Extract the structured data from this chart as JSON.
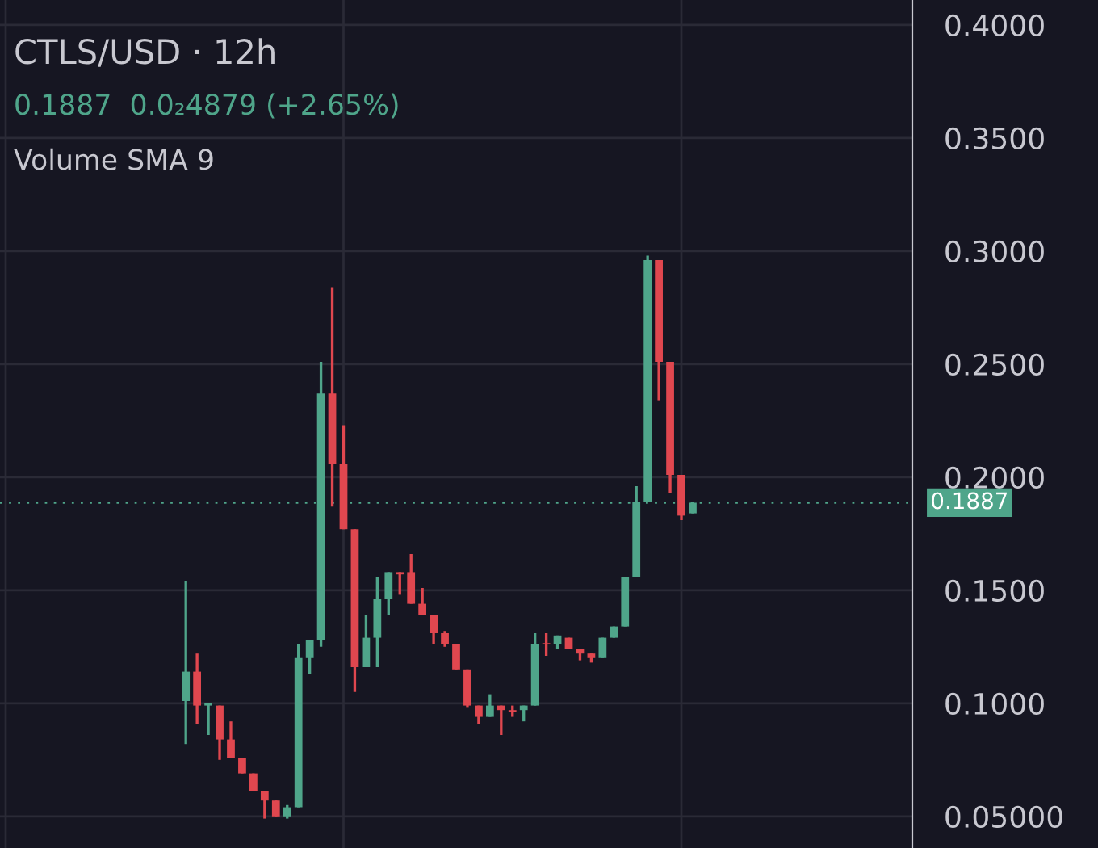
{
  "chart_data": {
    "type": "candlestick",
    "title": "CTLS/USD · 12h",
    "annotations": [
      "0.1887  0.0₂4879 (+2.65%)",
      "Volume SMA 9"
    ],
    "categories": [
      null,
      null,
      null,
      null,
      null,
      null,
      null,
      null,
      null,
      null,
      null,
      null,
      null,
      null,
      null,
      null,
      null,
      null,
      null,
      null,
      null,
      null,
      null,
      null,
      null,
      null,
      null,
      null,
      null,
      null,
      null,
      null,
      null,
      null,
      null,
      null,
      null,
      null,
      null,
      null,
      null,
      null,
      null,
      null,
      null,
      null,
      null,
      null,
      null,
      null,
      null,
      null,
      null,
      null,
      null,
      null,
      null,
      null,
      null,
      null,
      null,
      null,
      null,
      null,
      null,
      null,
      null,
      null,
      null,
      null,
      null,
      null,
      null,
      null,
      null,
      null,
      null,
      null,
      null,
      null,
      null
    ],
    "ohlc": [
      null,
      null,
      null,
      null,
      null,
      null,
      null,
      null,
      null,
      null,
      null,
      null,
      null,
      null,
      null,
      null,
      [
        0.101,
        0.154,
        0.082,
        0.114
      ],
      [
        0.114,
        0.122,
        0.091,
        0.099
      ],
      [
        0.099,
        0.1,
        0.086,
        0.1
      ],
      [
        0.099,
        0.099,
        0.075,
        0.084
      ],
      [
        0.084,
        0.092,
        0.076,
        0.076
      ],
      [
        0.076,
        0.076,
        0.069,
        0.069
      ],
      [
        0.069,
        0.069,
        0.061,
        0.061
      ],
      [
        0.061,
        0.061,
        0.049,
        0.057
      ],
      [
        0.057,
        0.057,
        0.05,
        0.05
      ],
      [
        0.05,
        0.055,
        0.049,
        0.054
      ],
      [
        0.054,
        0.126,
        0.054,
        0.12
      ],
      [
        0.12,
        0.128,
        0.113,
        0.128
      ],
      [
        0.128,
        0.251,
        0.125,
        0.237
      ],
      [
        0.237,
        0.284,
        0.187,
        0.206
      ],
      [
        0.206,
        0.223,
        0.177,
        0.177
      ],
      [
        0.177,
        0.177,
        0.105,
        0.116
      ],
      [
        0.116,
        0.139,
        0.116,
        0.129
      ],
      [
        0.129,
        0.156,
        0.116,
        0.146
      ],
      [
        0.146,
        0.158,
        0.139,
        0.158
      ],
      [
        0.158,
        0.158,
        0.148,
        0.157
      ],
      [
        0.158,
        0.166,
        0.144,
        0.144
      ],
      [
        0.144,
        0.151,
        0.139,
        0.139
      ],
      [
        0.139,
        0.139,
        0.126,
        0.131
      ],
      [
        0.131,
        0.132,
        0.125,
        0.126
      ],
      [
        0.126,
        0.126,
        0.115,
        0.115
      ],
      [
        0.115,
        0.115,
        0.098,
        0.099
      ],
      [
        0.099,
        0.099,
        0.091,
        0.094
      ],
      [
        0.094,
        0.104,
        0.094,
        0.099
      ],
      [
        0.099,
        0.099,
        0.086,
        0.097
      ],
      [
        0.097,
        0.099,
        0.094,
        0.096
      ],
      [
        0.097,
        0.099,
        0.092,
        0.099
      ],
      [
        0.099,
        0.131,
        0.099,
        0.126
      ],
      [
        0.126,
        0.131,
        0.121,
        0.126
      ],
      [
        0.126,
        0.13,
        0.124,
        0.13
      ],
      [
        0.129,
        0.129,
        0.124,
        0.124
      ],
      [
        0.124,
        0.124,
        0.119,
        0.122
      ],
      [
        0.122,
        0.122,
        0.118,
        0.12
      ],
      [
        0.12,
        0.129,
        0.12,
        0.129
      ],
      [
        0.129,
        0.134,
        0.129,
        0.134
      ],
      [
        0.134,
        0.156,
        0.134,
        0.156
      ],
      [
        0.156,
        0.196,
        0.156,
        0.189
      ],
      [
        0.189,
        0.298,
        0.189,
        0.296
      ],
      [
        0.296,
        0.296,
        0.234,
        0.251
      ],
      [
        0.251,
        0.251,
        0.193,
        0.201
      ],
      [
        0.201,
        0.201,
        0.181,
        0.183
      ],
      [
        0.184,
        0.189,
        0.184,
        0.1887
      ],
      null,
      null,
      null,
      null,
      null,
      null,
      null,
      null,
      null,
      null,
      null,
      null,
      null,
      null,
      null,
      null,
      null,
      null,
      null
    ],
    "colors": [
      null,
      null,
      null,
      null,
      null,
      null,
      null,
      null,
      null,
      null,
      null,
      null,
      null,
      null,
      null,
      null,
      "#4fa58a",
      "#e0474f",
      "#4fa58a",
      "#e0474f",
      "#e0474f",
      "#e0474f",
      "#e0474f",
      "#e0474f",
      "#e0474f",
      "#4fa58a",
      "#4fa58a",
      "#4fa58a",
      "#4fa58a",
      "#e0474f",
      "#e0474f",
      "#e0474f",
      "#4fa58a",
      "#4fa58a",
      "#4fa58a",
      "#e0474f",
      "#e0474f",
      "#e0474f",
      "#e0474f",
      "#e0474f",
      "#e0474f",
      "#e0474f",
      "#e0474f",
      "#4fa58a",
      "#e0474f",
      "#e0474f",
      "#4fa58a",
      "#4fa58a",
      "#e0474f",
      "#4fa58a",
      "#e0474f",
      "#e0474f",
      "#e0474f",
      "#4fa58a",
      "#4fa58a",
      "#4fa58a",
      "#4fa58a",
      "#4fa58a",
      "#e0474f",
      "#e0474f",
      "#e0474f",
      "#4fa58a",
      null,
      null,
      null,
      null,
      null,
      null,
      null,
      null,
      null,
      null,
      null,
      null,
      null,
      null,
      null,
      null,
      null,
      null,
      null
    ],
    "ylim": [
      0.036,
      0.411
    ],
    "yticks": [
      {
        "value": 0.05,
        "label": "0.05000"
      },
      {
        "value": 0.1,
        "label": "0.1000"
      },
      {
        "value": 0.15,
        "label": "0.1500"
      },
      {
        "value": 0.2,
        "label": "0.2000"
      },
      {
        "value": 0.25,
        "label": "0.2500"
      },
      {
        "value": 0.3,
        "label": "0.3000"
      },
      {
        "value": 0.35,
        "label": "0.3500"
      },
      {
        "value": 0.4,
        "label": "0.4000"
      }
    ],
    "tick_labels": "y",
    "grid": true,
    "ref_lines": [
      {
        "axis": "y",
        "value": 0.1887,
        "label": "0.1887",
        "color": "#4fa58a",
        "line_style": "dotted"
      }
    ]
  }
}
